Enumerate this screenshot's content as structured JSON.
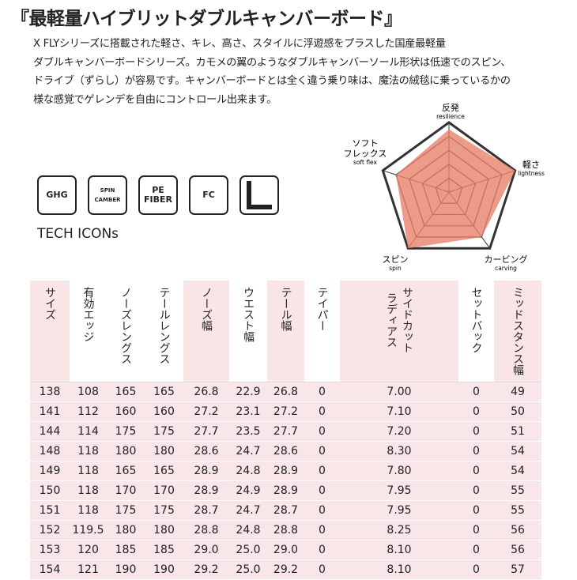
{
  "header": {
    "title": "『最軽量ハイブリットダブルキャンバーボード』"
  },
  "description": [
    "X FLYシリーズに搭載された軽さ、キレ、高さ、スタイルに浮遊感をプラスした国産最軽量",
    "ダブルキャンバーボードシリーズ。カモメの翼のようなダブルキャンバーソール形状は低速でのスピン、",
    "ドライブ（ずらし）が容易です。キャンバーボードとは全く違う乗り味は、魔法の絨毯に乗っているかの",
    "様な感覚でゲレンデを自由にコントロール出来ます。"
  ],
  "icons": {
    "items": [
      "GHG",
      "SPIN CAMBER",
      "PE FIBER",
      "FC"
    ],
    "caption": "TECH ICONs"
  },
  "radar": {
    "max": 5,
    "color": "#e8826c",
    "axes": [
      {
        "ja": [
          "反発"
        ],
        "en": "resilience",
        "value": 4.5
      },
      {
        "ja": [
          "軽さ"
        ],
        "en": "lightness",
        "value": 5
      },
      {
        "ja": [
          "カービング"
        ],
        "en": "carving",
        "value": 4
      },
      {
        "ja": [
          "スピン"
        ],
        "en": "spin",
        "value": 5
      },
      {
        "ja": [
          "ソフト",
          "フレックス"
        ],
        "en": "soft flex",
        "value": 4
      }
    ]
  },
  "table": {
    "headers": [
      [
        "サイズ"
      ],
      [
        "有効エッジ"
      ],
      [
        "ノーズレングス"
      ],
      [
        "テールレングス"
      ],
      [
        "ノーズ幅"
      ],
      [
        "ウエスト幅"
      ],
      [
        "テール幅"
      ],
      [
        "テイパー"
      ],
      [
        "サイドカット",
        "ラディアス"
      ],
      [
        "セットバック"
      ],
      [
        "ミッドスタンス幅"
      ]
    ],
    "rows": [
      [
        "138",
        "108",
        "165",
        "165",
        "26.8",
        "22.9",
        "26.8",
        "0",
        "7.00",
        "0",
        "49"
      ],
      [
        "141",
        "112",
        "160",
        "160",
        "27.2",
        "23.1",
        "27.2",
        "0",
        "7.10",
        "0",
        "50"
      ],
      [
        "144",
        "114",
        "175",
        "175",
        "27.7",
        "23.5",
        "27.7",
        "0",
        "7.20",
        "0",
        "51"
      ],
      [
        "148",
        "118",
        "180",
        "180",
        "28.6",
        "24.7",
        "28.6",
        "0",
        "8.30",
        "0",
        "54"
      ],
      [
        "149",
        "118",
        "165",
        "165",
        "28.9",
        "24.8",
        "28.9",
        "0",
        "7.80",
        "0",
        "54"
      ],
      [
        "150",
        "118",
        "170",
        "170",
        "28.9",
        "24.9",
        "28.9",
        "0",
        "7.95",
        "0",
        "55"
      ],
      [
        "151",
        "118",
        "175",
        "175",
        "28.7",
        "24.7",
        "28.7",
        "0",
        "7.95",
        "0",
        "55"
      ],
      [
        "152",
        "119.5",
        "180",
        "180",
        "28.8",
        "24.8",
        "28.8",
        "0",
        "8.25",
        "0",
        "56"
      ],
      [
        "153",
        "120",
        "185",
        "185",
        "29.0",
        "25.0",
        "29.0",
        "0",
        "8.10",
        "0",
        "56"
      ],
      [
        "154",
        "121",
        "190",
        "190",
        "29.2",
        "25.0",
        "29.2",
        "0",
        "8.10",
        "0",
        "57"
      ]
    ]
  }
}
